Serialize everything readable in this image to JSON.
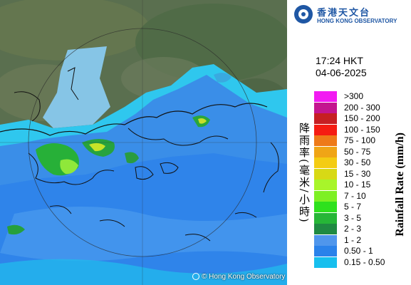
{
  "map": {
    "copyright": "© Hong Kong Observatory"
  },
  "logo": {
    "name_zh": "香港天文台",
    "name_en": "HONG KONG OBSERVATORY"
  },
  "timestamp": {
    "time": "17:24 HKT",
    "date": "04-06-2025"
  },
  "legend": {
    "title_zh": "降雨率(毫米/小時)",
    "title_en": "Rainfall Rate (mm/h)",
    "bands": [
      {
        "label": ">300",
        "color": "#f21bf2"
      },
      {
        "label": "200 - 300",
        "color": "#c4158f"
      },
      {
        "label": "150 - 200",
        "color": "#c61f23"
      },
      {
        "label": "100 - 150",
        "color": "#f51c12"
      },
      {
        "label": "75 - 100",
        "color": "#ee7a18"
      },
      {
        "label": "50 - 75",
        "color": "#f0a516"
      },
      {
        "label": "30 - 50",
        "color": "#f4cc13"
      },
      {
        "label": "15 - 30",
        "color": "#d8d915"
      },
      {
        "label": "10 - 15",
        "color": "#a8f52a"
      },
      {
        "label": "7 - 10",
        "color": "#7df023"
      },
      {
        "label": "5 - 7",
        "color": "#2ee11d"
      },
      {
        "label": "3 - 5",
        "color": "#26b637"
      },
      {
        "label": "2 - 3",
        "color": "#1f8a42"
      },
      {
        "label": "1 - 2",
        "color": "#4f96ec"
      },
      {
        "label": "0.50 - 1",
        "color": "#2a82ea"
      },
      {
        "label": "0.15 - 0.50",
        "color": "#17bfee"
      }
    ]
  }
}
